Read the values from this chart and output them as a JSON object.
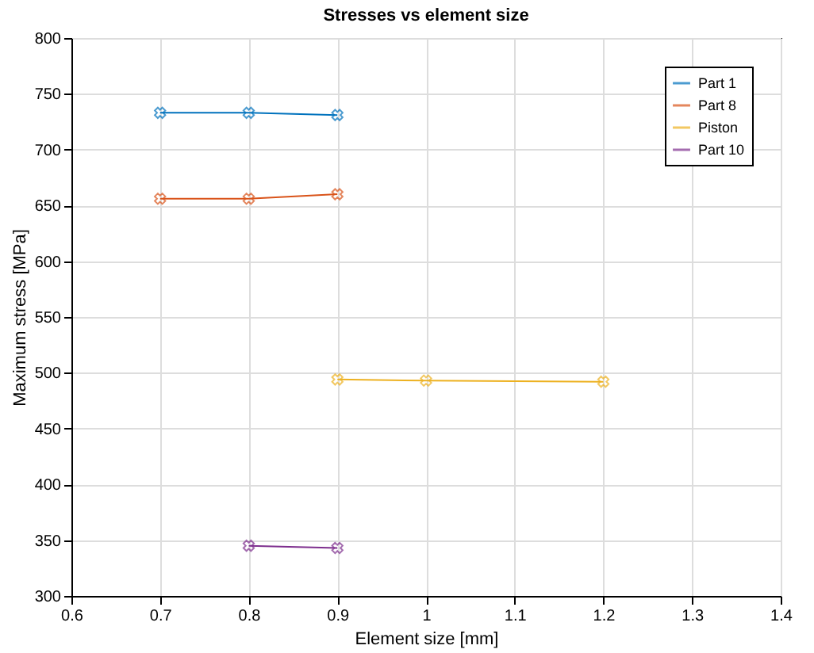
{
  "chart_data": {
    "type": "line",
    "title": "Stresses vs element size",
    "xlabel": "Element size [mm]",
    "ylabel": "Maximum stress [MPa]",
    "series": [
      {
        "name": "Part 1",
        "color": "#0072bd",
        "x": [
          0.7,
          0.8,
          0.9
        ],
        "values": [
          733,
          733,
          731
        ]
      },
      {
        "name": "Part 8",
        "color": "#d95319",
        "x": [
          0.7,
          0.8,
          0.9
        ],
        "values": [
          656,
          656,
          660
        ]
      },
      {
        "name": "Piston",
        "color": "#edb120",
        "x": [
          0.9,
          1.0,
          1.2
        ],
        "values": [
          494,
          493,
          492
        ]
      },
      {
        "name": "Part 10",
        "color": "#7e2f8e",
        "x": [
          0.8,
          0.9
        ],
        "values": [
          345,
          343
        ]
      }
    ],
    "xlim": [
      0.6,
      1.4
    ],
    "xticks": [
      0.6,
      0.7,
      0.8,
      0.9,
      1,
      1.1,
      1.2,
      1.3,
      1.4
    ],
    "ylim": [
      300,
      800
    ],
    "yticks": [
      300,
      350,
      400,
      450,
      500,
      550,
      600,
      650,
      700,
      750,
      800
    ],
    "grid": true,
    "legend": "top right",
    "marker": "cross",
    "line_style": "solid"
  }
}
